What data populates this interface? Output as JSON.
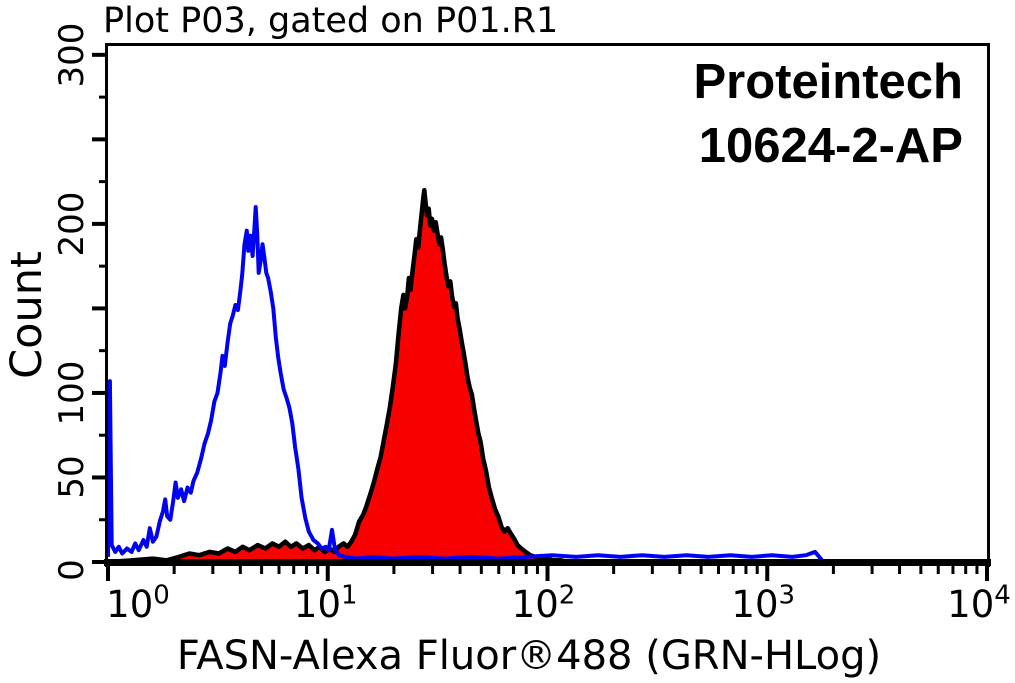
{
  "header": {
    "title": "Plot P03, gated on P01.R1"
  },
  "watermark": {
    "line1": "Proteintech",
    "line2": "10624-2-AP"
  },
  "axes": {
    "x_label": "FASN-Alexa Fluor®488 (GRN-HLog)",
    "y_label": "Count"
  },
  "colors": {
    "background": "#ffffff",
    "axis": "#000000",
    "control_curve": "#0202f2",
    "sample_fill": "#fb0000",
    "sample_outline": "#000000"
  },
  "chart_data": {
    "type": "area",
    "subtype": "flow-cytometry-overlay-histogram",
    "title": "Plot P03, gated on P01.R1",
    "xlabel": "FASN-Alexa Fluor®488 (GRN-HLog)",
    "ylabel": "Count",
    "x_scale": "log10",
    "x_range": [
      1,
      10000
    ],
    "x_tick_exponents": [
      0,
      1,
      2,
      3,
      4
    ],
    "ylim": [
      0,
      307
    ],
    "y_major_ticks": [
      0,
      50,
      100,
      150,
      200,
      250,
      300
    ],
    "y_minor_ticks": [
      25,
      75,
      125,
      175,
      225,
      275
    ],
    "y_labeled_ticks": [
      0,
      50,
      100,
      200,
      300
    ],
    "grid": false,
    "legend": "none",
    "series": [
      {
        "name": "control (blue open histogram)",
        "color": "#0202f2",
        "fill": "none",
        "peak": {
          "x": 4.7,
          "count": 210
        },
        "points": [
          [
            1.0,
            3
          ],
          [
            1.02,
            107
          ],
          [
            1.04,
            10
          ],
          [
            1.08,
            6
          ],
          [
            1.12,
            9
          ],
          [
            1.16,
            5
          ],
          [
            1.22,
            8
          ],
          [
            1.28,
            6
          ],
          [
            1.33,
            11
          ],
          [
            1.38,
            7
          ],
          [
            1.45,
            13
          ],
          [
            1.5,
            9
          ],
          [
            1.55,
            20
          ],
          [
            1.6,
            12
          ],
          [
            1.66,
            15
          ],
          [
            1.72,
            24
          ],
          [
            1.78,
            30
          ],
          [
            1.82,
            37
          ],
          [
            1.86,
            27
          ],
          [
            1.92,
            25
          ],
          [
            1.98,
            36
          ],
          [
            2.03,
            47
          ],
          [
            2.08,
            38
          ],
          [
            2.15,
            43
          ],
          [
            2.22,
            36
          ],
          [
            2.3,
            44
          ],
          [
            2.38,
            41
          ],
          [
            2.45,
            48
          ],
          [
            2.55,
            53
          ],
          [
            2.65,
            61
          ],
          [
            2.75,
            70
          ],
          [
            2.85,
            76
          ],
          [
            2.95,
            84
          ],
          [
            3.05,
            95
          ],
          [
            3.15,
            100
          ],
          [
            3.25,
            112
          ],
          [
            3.32,
            122
          ],
          [
            3.4,
            116
          ],
          [
            3.5,
            130
          ],
          [
            3.6,
            141
          ],
          [
            3.7,
            146
          ],
          [
            3.8,
            152
          ],
          [
            3.9,
            149
          ],
          [
            4.0,
            160
          ],
          [
            4.08,
            170
          ],
          [
            4.18,
            188
          ],
          [
            4.28,
            196
          ],
          [
            4.35,
            184
          ],
          [
            4.45,
            193
          ],
          [
            4.55,
            181
          ],
          [
            4.65,
            200
          ],
          [
            4.7,
            210
          ],
          [
            4.78,
            193
          ],
          [
            4.85,
            171
          ],
          [
            4.95,
            178
          ],
          [
            5.05,
            188
          ],
          [
            5.15,
            180
          ],
          [
            5.25,
            171
          ],
          [
            5.35,
            168
          ],
          [
            5.5,
            160
          ],
          [
            5.65,
            150
          ],
          [
            5.8,
            133
          ],
          [
            5.95,
            121
          ],
          [
            6.1,
            112
          ],
          [
            6.3,
            102
          ],
          [
            6.5,
            97
          ],
          [
            6.7,
            91
          ],
          [
            6.9,
            82
          ],
          [
            7.1,
            68
          ],
          [
            7.35,
            55
          ],
          [
            7.6,
            38
          ],
          [
            7.9,
            26
          ],
          [
            8.2,
            18
          ],
          [
            8.6,
            13
          ],
          [
            9.0,
            11
          ],
          [
            9.4,
            8
          ],
          [
            9.8,
            9
          ],
          [
            10.1,
            7
          ],
          [
            10.45,
            19
          ],
          [
            10.8,
            7
          ],
          [
            11.3,
            4
          ],
          [
            12.0,
            3
          ],
          [
            13.5,
            2
          ],
          [
            16,
            3
          ],
          [
            20,
            2
          ],
          [
            26,
            3
          ],
          [
            34,
            2
          ],
          [
            45,
            3
          ],
          [
            60,
            2
          ],
          [
            80,
            3
          ],
          [
            105,
            4
          ],
          [
            135,
            3
          ],
          [
            170,
            4
          ],
          [
            215,
            3
          ],
          [
            270,
            4
          ],
          [
            340,
            3
          ],
          [
            430,
            4
          ],
          [
            540,
            3
          ],
          [
            680,
            4
          ],
          [
            850,
            3
          ],
          [
            1050,
            4
          ],
          [
            1300,
            3
          ],
          [
            1500,
            4
          ],
          [
            1650,
            6
          ],
          [
            1750,
            2
          ],
          [
            1800,
            0
          ]
        ]
      },
      {
        "name": "FASN antibody stained (red filled histogram)",
        "color": "#000000",
        "fill": "#fb0000",
        "peak": {
          "x": 27.5,
          "count": 220
        },
        "points": [
          [
            1.0,
            0
          ],
          [
            1.3,
            1
          ],
          [
            1.6,
            2
          ],
          [
            1.85,
            1
          ],
          [
            2.1,
            3
          ],
          [
            2.35,
            5
          ],
          [
            2.6,
            4
          ],
          [
            2.9,
            6
          ],
          [
            3.2,
            5
          ],
          [
            3.5,
            8
          ],
          [
            3.8,
            6
          ],
          [
            4.1,
            9
          ],
          [
            4.4,
            7
          ],
          [
            4.8,
            10
          ],
          [
            5.2,
            8
          ],
          [
            5.6,
            11
          ],
          [
            6.0,
            9
          ],
          [
            6.4,
            12
          ],
          [
            6.8,
            9
          ],
          [
            7.2,
            11
          ],
          [
            7.7,
            8
          ],
          [
            8.2,
            10
          ],
          [
            8.7,
            7
          ],
          [
            9.2,
            9
          ],
          [
            9.7,
            6
          ],
          [
            10.2,
            8
          ],
          [
            10.7,
            6
          ],
          [
            11.2,
            9
          ],
          [
            11.8,
            11
          ],
          [
            12.3,
            9
          ],
          [
            12.8,
            12
          ],
          [
            13.3,
            16
          ],
          [
            13.9,
            24
          ],
          [
            14.5,
            28
          ],
          [
            15.0,
            33
          ],
          [
            15.6,
            40
          ],
          [
            16.2,
            47
          ],
          [
            16.8,
            55
          ],
          [
            17.4,
            62
          ],
          [
            18.0,
            72
          ],
          [
            18.6,
            82
          ],
          [
            19.2,
            92
          ],
          [
            19.8,
            104
          ],
          [
            20.4,
            117
          ],
          [
            21.0,
            135
          ],
          [
            21.6,
            150
          ],
          [
            22.1,
            158
          ],
          [
            22.5,
            150
          ],
          [
            23.0,
            157
          ],
          [
            23.4,
            168
          ],
          [
            23.8,
            161
          ],
          [
            24.3,
            172
          ],
          [
            24.8,
            181
          ],
          [
            25.3,
            191
          ],
          [
            25.8,
            186
          ],
          [
            26.3,
            197
          ],
          [
            26.8,
            207
          ],
          [
            27.2,
            215
          ],
          [
            27.5,
            220
          ],
          [
            27.9,
            212
          ],
          [
            28.3,
            205
          ],
          [
            28.8,
            209
          ],
          [
            29.3,
            199
          ],
          [
            29.8,
            203
          ],
          [
            30.4,
            196
          ],
          [
            31.0,
            201
          ],
          [
            31.6,
            194
          ],
          [
            32.2,
            188
          ],
          [
            32.8,
            192
          ],
          [
            33.4,
            185
          ],
          [
            34.0,
            177
          ],
          [
            34.7,
            169
          ],
          [
            35.4,
            163
          ],
          [
            36.1,
            166
          ],
          [
            36.8,
            157
          ],
          [
            37.6,
            151
          ],
          [
            38.3,
            153
          ],
          [
            39.0,
            144
          ],
          [
            39.8,
            138
          ],
          [
            40.6,
            131
          ],
          [
            41.5,
            124
          ],
          [
            42.4,
            117
          ],
          [
            43.3,
            109
          ],
          [
            44.3,
            103
          ],
          [
            45.3,
            99
          ],
          [
            46.3,
            91
          ],
          [
            47.4,
            83
          ],
          [
            48.5,
            76
          ],
          [
            49.6,
            71
          ],
          [
            51.0,
            61
          ],
          [
            52.5,
            54
          ],
          [
            54.2,
            44
          ],
          [
            56.0,
            37
          ],
          [
            57.8,
            31
          ],
          [
            59.7,
            27
          ],
          [
            61.7,
            21
          ],
          [
            63.7,
            18
          ],
          [
            65.8,
            20
          ],
          [
            68.0,
            17
          ],
          [
            70.3,
            14
          ],
          [
            73.0,
            10
          ],
          [
            76.0,
            8
          ],
          [
            79.5,
            6
          ],
          [
            83.5,
            4
          ],
          [
            88.0,
            3
          ],
          [
            93.0,
            2
          ],
          [
            99.0,
            2
          ],
          [
            106.0,
            1
          ],
          [
            115.0,
            1
          ],
          [
            125.0,
            0
          ]
        ]
      }
    ]
  }
}
